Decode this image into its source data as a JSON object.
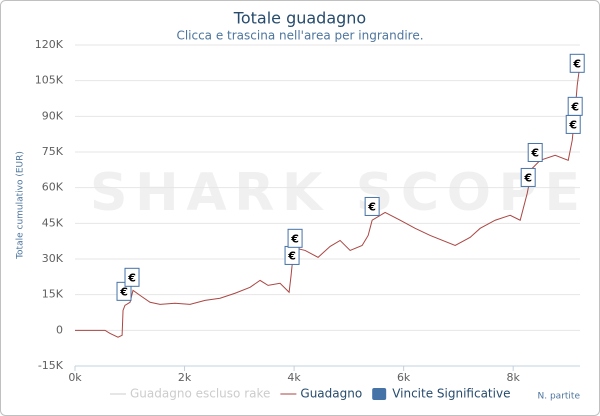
{
  "chart_data": {
    "type": "line",
    "title": "Totale guadagno",
    "subtitle": "Clicca e trascina nell'area per ingrandire.",
    "watermark": "SHARK SCOPE",
    "y_label": "Totale cumulativo (EUR)",
    "x_label": "N. partite",
    "xlim": [
      0,
      9220
    ],
    "ylim": [
      -15000,
      120000
    ],
    "xticks": [
      {
        "value": 0,
        "label": "0k"
      },
      {
        "value": 2000,
        "label": "2k"
      },
      {
        "value": 4000,
        "label": "4k"
      },
      {
        "value": 6000,
        "label": "6k"
      },
      {
        "value": 8000,
        "label": "8k"
      }
    ],
    "yticks": [
      {
        "value": -15000,
        "label": "-15K"
      },
      0,
      {
        "value": 15000,
        "label": "15K"
      },
      {
        "value": 30000,
        "label": "30K"
      },
      {
        "value": 45000,
        "label": "45K"
      },
      {
        "value": 60000,
        "label": "60K"
      },
      {
        "value": 75000,
        "label": "75K"
      },
      {
        "value": 90000,
        "label": "90K"
      },
      {
        "value": 105000,
        "label": "105K"
      },
      {
        "value": 120000,
        "label": "120K"
      }
    ],
    "grid": true,
    "series": [
      {
        "name": "Guadagno escluso rake",
        "color": "#cccccc",
        "visible": false
      },
      {
        "name": "Guadagno",
        "color": "#aa4643",
        "x": [
          0,
          548,
          640,
          785,
          860,
          877,
          913,
          1005,
          1059,
          1187,
          1370,
          1553,
          1826,
          2100,
          2374,
          2648,
          2922,
          3196,
          3379,
          3525,
          3744,
          3909,
          3945,
          3982,
          4037,
          4201,
          4438,
          4658,
          4840,
          5023,
          5242,
          5352,
          5425,
          5662,
          5936,
          6210,
          6484,
          6941,
          7215,
          7397,
          7671,
          7945,
          8128,
          8256,
          8347,
          8493,
          8767,
          9005,
          9078,
          9132,
          9169,
          9205
        ],
        "values": [
          0,
          0,
          -1300,
          -2900,
          -2100,
          8400,
          10500,
          11800,
          16800,
          14700,
          11800,
          10900,
          11400,
          10900,
          12600,
          13500,
          15600,
          18100,
          21000,
          18900,
          19800,
          16000,
          23100,
          31500,
          34500,
          33600,
          30700,
          35300,
          37800,
          33600,
          35700,
          39900,
          46300,
          49600,
          46300,
          42900,
          39900,
          35700,
          39100,
          42900,
          46300,
          48400,
          46300,
          57600,
          68100,
          71500,
          73600,
          71500,
          79900,
          92500,
          103000,
          109300
        ]
      },
      {
        "name": "Vincite Significative",
        "color": "#4572a7",
        "x": [
          895,
          1041,
          3963,
          4018,
          5425,
          8274,
          8402,
          9096,
          9132,
          9169
        ],
        "values": [
          16400,
          22300,
          31500,
          38700,
          52100,
          64300,
          74800,
          86600,
          94200,
          112300
        ],
        "labels": [
          "€",
          "€",
          "€",
          "€",
          "€",
          "€",
          "€",
          "€",
          "€",
          "€"
        ]
      }
    ]
  }
}
